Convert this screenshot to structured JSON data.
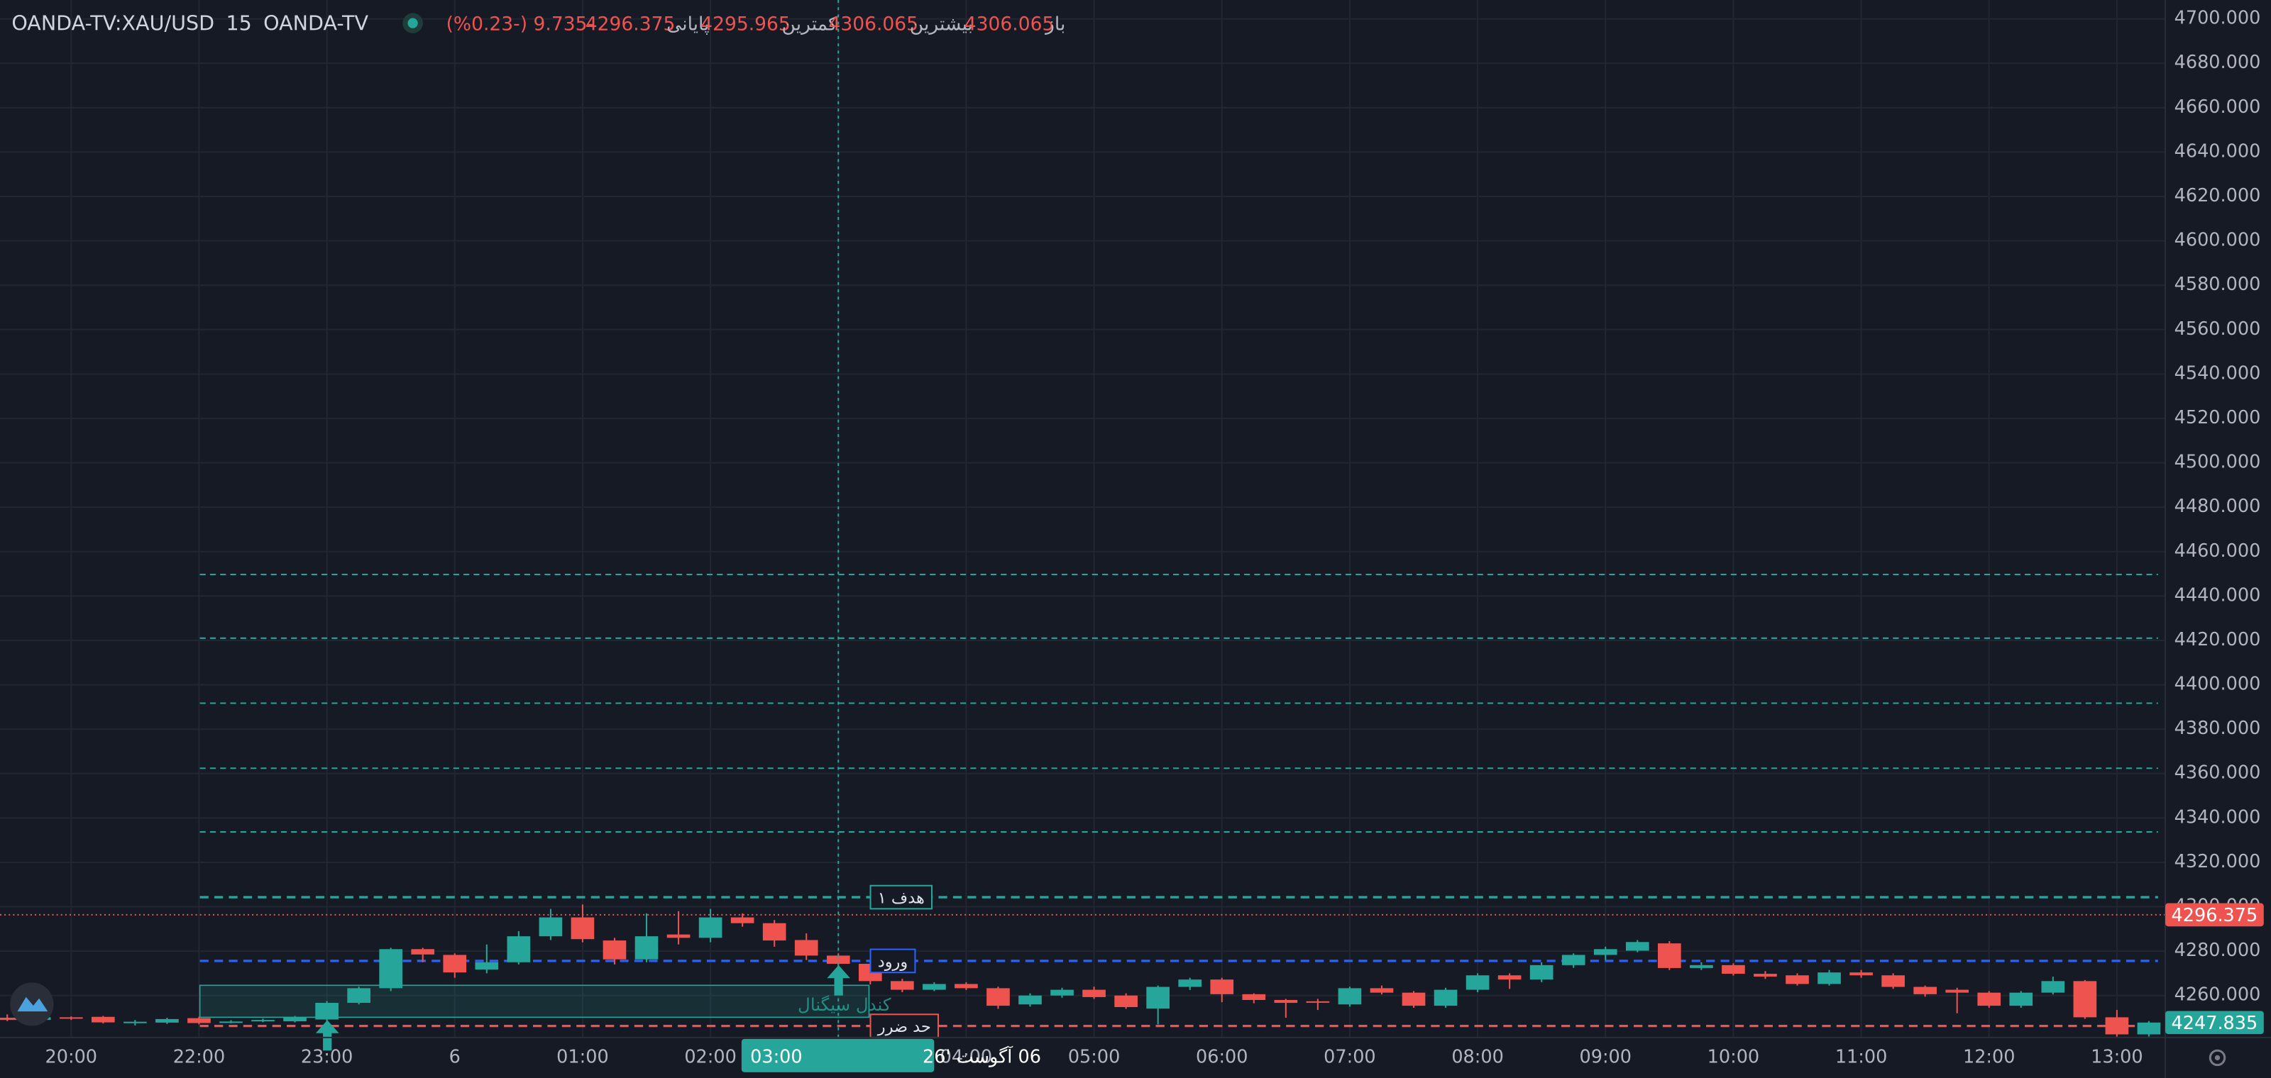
{
  "chart_data": {
    "type": "candlestick",
    "symbol": "OANDA-TV:XAU/USD",
    "interval": "15",
    "source": "OANDA-TV",
    "legend": [
      {
        "label": "باز",
        "value": 4306.065
      },
      {
        "label": "بیشترین",
        "value": 4306.065
      },
      {
        "label": "کمترین",
        "value": 4295.965
      },
      {
        "label": "پایانی",
        "value": 4296.375
      }
    ],
    "change": "-9.735 (-0.23%)",
    "up_color": "#26a69a",
    "down_color": "#ef5350",
    "x": [
      "19:30",
      "19:45",
      "20:00",
      "20:15",
      "20:30",
      "20:45",
      "22:00",
      "22:15",
      "22:30",
      "22:45",
      "23:00",
      "23:15",
      "23:30",
      "23:45",
      "00:00",
      "00:15",
      "00:30",
      "00:45",
      "01:00",
      "01:15",
      "01:30",
      "01:45",
      "02:00",
      "02:15",
      "02:30",
      "02:45",
      "03:00",
      "03:15",
      "03:30",
      "03:45",
      "04:00",
      "04:15",
      "04:30",
      "04:45",
      "05:00",
      "05:15",
      "05:30",
      "05:45",
      "06:00",
      "06:15",
      "06:30",
      "06:45",
      "07:00",
      "07:15",
      "07:30",
      "07:45",
      "08:00",
      "08:15",
      "08:30",
      "08:45",
      "09:00",
      "09:15",
      "09:30",
      "09:45",
      "10:00",
      "10:15",
      "10:30",
      "10:45",
      "11:00",
      "11:15",
      "11:30",
      "11:45",
      "12:00",
      "12:15",
      "12:30",
      "12:45",
      "13:00",
      "13:15"
    ],
    "open": [
      4250.0,
      4249.0,
      4250.2,
      4250.4,
      4248.0,
      4247.8,
      4249.8,
      4248.0,
      4248.6,
      4248.4,
      4249.2,
      4256.7,
      4263.3,
      4280.9,
      4278.3,
      4271.7,
      4275.0,
      4286.7,
      4295.2,
      4284.8,
      4276.3,
      4287.5,
      4286.0,
      4295.2,
      4292.6,
      4285.0,
      4278.0,
      4274.3,
      4266.5,
      4262.6,
      4265.2,
      4263.3,
      4256.0,
      4260.0,
      4262.6,
      4260.0,
      4254.1,
      4263.9,
      4267.2,
      4260.6,
      4258.0,
      4257.4,
      4256.0,
      4263.3,
      4261.3,
      4255.4,
      4262.6,
      4269.1,
      4267.2,
      4273.7,
      4278.3,
      4280.2,
      4283.5,
      4272.4,
      4273.7,
      4269.8,
      4269.1,
      4265.2,
      4270.4,
      4269.1,
      4263.9,
      4262.6,
      4261.3,
      4255.4,
      4261.3,
      4266.5,
      4250.2,
      4242.5
    ],
    "high": [
      4251.5,
      4250.8,
      4250.6,
      4250.8,
      4249.0,
      4250.0,
      4250.5,
      4248.9,
      4249.6,
      4250.8,
      4257.5,
      4264.0,
      4281.5,
      4281.5,
      4279.0,
      4283.0,
      4289.0,
      4299.0,
      4301.0,
      4286.0,
      4297.0,
      4298.0,
      4299.0,
      4297.0,
      4294.0,
      4288.0,
      4279.0,
      4275.0,
      4267.5,
      4266.0,
      4266.0,
      4264.0,
      4261.0,
      4263.5,
      4264.0,
      4261.0,
      4264.5,
      4268.0,
      4268.0,
      4261.0,
      4258.5,
      4258.5,
      4264.0,
      4264.5,
      4262.0,
      4263.5,
      4270.0,
      4270.0,
      4275.0,
      4279.0,
      4282.0,
      4285.0,
      4284.5,
      4275.0,
      4274.5,
      4271.0,
      4270.0,
      4271.5,
      4271.5,
      4270.0,
      4264.5,
      4263.5,
      4262.0,
      4262.0,
      4268.5,
      4267.0,
      4253.5,
      4248.5
    ],
    "low": [
      4248.5,
      4248.6,
      4249.0,
      4247.4,
      4246.5,
      4247.2,
      4247.0,
      4247.5,
      4248.0,
      4247.9,
      4246.0,
      4256.0,
      4262.0,
      4275.0,
      4268.0,
      4270.0,
      4274.0,
      4285.0,
      4284.0,
      4274.0,
      4275.0,
      4283.0,
      4284.0,
      4291.0,
      4282.0,
      4276.0,
      4272.0,
      4265.0,
      4261.5,
      4262.0,
      4262.5,
      4254.0,
      4255.0,
      4259.0,
      4258.5,
      4254.0,
      4247.0,
      4262.5,
      4257.0,
      4256.5,
      4250.0,
      4253.5,
      4255.0,
      4260.5,
      4254.5,
      4254.5,
      4261.5,
      4263.0,
      4266.0,
      4272.5,
      4276.0,
      4279.5,
      4271.5,
      4271.5,
      4269.0,
      4267.5,
      4264.5,
      4264.5,
      4268.0,
      4263.0,
      4259.5,
      4252.0,
      4254.5,
      4254.5,
      4260.5,
      4249.5,
      4241.5,
      4241.5
    ],
    "close": [
      4249.0,
      4250.2,
      4249.6,
      4247.9,
      4248.2,
      4249.4,
      4247.6,
      4248.3,
      4249.0,
      4250.2,
      4256.7,
      4263.3,
      4280.9,
      4278.5,
      4270.4,
      4275.0,
      4286.7,
      4295.2,
      4285.4,
      4276.3,
      4286.7,
      4286.0,
      4295.2,
      4292.6,
      4284.8,
      4278.0,
      4274.3,
      4266.5,
      4262.6,
      4265.2,
      4263.3,
      4255.4,
      4260.0,
      4262.6,
      4259.3,
      4254.8,
      4263.9,
      4267.2,
      4260.6,
      4258.0,
      4256.7,
      4257.2,
      4263.3,
      4261.3,
      4255.4,
      4262.6,
      4269.1,
      4267.2,
      4273.7,
      4278.3,
      4280.9,
      4284.1,
      4272.4,
      4273.7,
      4269.8,
      4268.5,
      4265.2,
      4270.4,
      4269.1,
      4263.9,
      4260.6,
      4261.3,
      4255.4,
      4261.3,
      4266.5,
      4250.2,
      4242.5,
      4247.835
    ],
    "ylim": [
      4241.1,
      4708.5
    ],
    "yticks": [
      {
        "value": 4260,
        "label": "4260.000"
      },
      {
        "value": 4280,
        "label": "4280.000"
      },
      {
        "value": 4300,
        "label": "4300.000"
      },
      {
        "value": 4320,
        "label": "4320.000"
      },
      {
        "value": 4340,
        "label": "4340.000"
      },
      {
        "value": 4360,
        "label": "4360.000"
      },
      {
        "value": 4380,
        "label": "4380.000"
      },
      {
        "value": 4400,
        "label": "4400.000"
      },
      {
        "value": 4420,
        "label": "4420.000"
      },
      {
        "value": 4440,
        "label": "4440.000"
      },
      {
        "value": 4460,
        "label": "4460.000"
      },
      {
        "value": 4480,
        "label": "4480.000"
      },
      {
        "value": 4500,
        "label": "4500.000"
      },
      {
        "value": 4520,
        "label": "4520.000"
      },
      {
        "value": 4540,
        "label": "4540.000"
      },
      {
        "value": 4560,
        "label": "4560.000"
      },
      {
        "value": 4580,
        "label": "4580.000"
      },
      {
        "value": 4600,
        "label": "4600.000"
      },
      {
        "value": 4620,
        "label": "4620.000"
      },
      {
        "value": 4640,
        "label": "4640.000"
      },
      {
        "value": 4660,
        "label": "4660.000"
      },
      {
        "value": 4680,
        "label": "4680.000"
      },
      {
        "value": 4700,
        "label": "4700.000"
      }
    ],
    "xticks": [
      "20:00",
      "22:00",
      "23:00",
      {
        "value": "00:00",
        "label": "6"
      },
      "01:00",
      "02:00",
      "03:00",
      "04:00",
      "05:00",
      "06:00",
      "07:00",
      "08:00",
      "09:00",
      "10:00",
      "11:00",
      "12:00",
      "13:00"
    ],
    "grid": true,
    "levels": [
      {
        "value": 4449.7,
        "color": "#26a69a"
      },
      {
        "value": 4421.0,
        "color": "#26a69a"
      },
      {
        "value": 4391.7,
        "color": "#26a69a"
      },
      {
        "value": 4362.4,
        "color": "#26a69a"
      },
      {
        "value": 4333.7,
        "color": "#26a69a"
      },
      {
        "value": 4304.3,
        "color": "#26a69a",
        "label": "هدف ۱"
      },
      {
        "value": 4275.6,
        "color": "#2962ff",
        "label": "ورود"
      },
      {
        "value": 4246.3,
        "color": "#ef5350",
        "label": "حد ضرر"
      }
    ],
    "zone": {
      "label": "کندل سیگنال",
      "top": 4264.6,
      "bottom": 4250.2,
      "color": "#26a69a"
    },
    "crosshair": {
      "time": "03:00",
      "date": "06 آگوست '26"
    },
    "price_labels": [
      {
        "value": 4296.375,
        "label": "4296.375",
        "color": "#ef5350"
      },
      {
        "value": 4247.835,
        "label": "4247.835",
        "color": "#26a69a"
      }
    ]
  }
}
